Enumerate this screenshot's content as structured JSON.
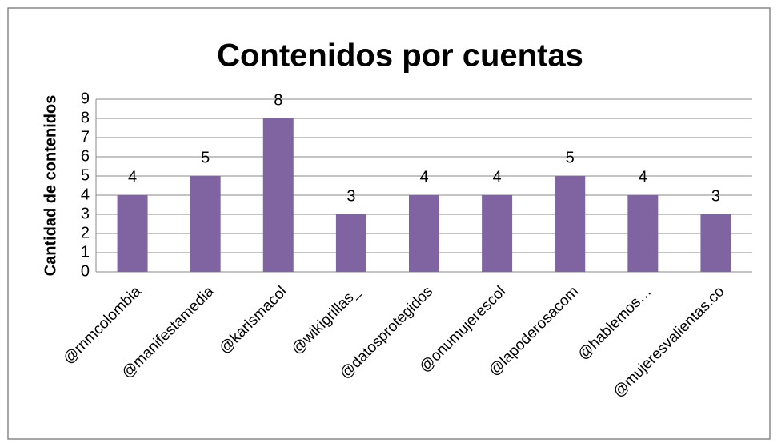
{
  "chart_data": {
    "type": "bar",
    "title": "Contenidos por cuentas",
    "y_label": "Cantidad de contenidos",
    "categories": [
      "@rnmcolombia",
      "@manifestamedia",
      "@karismacol",
      "@wikigrillas_",
      "@datosprotegidos",
      "@onumujerescol",
      "@lapoderosacom",
      "@hablemos…",
      "@mujeresvalientas.co"
    ],
    "values": [
      4,
      5,
      8,
      3,
      4,
      4,
      5,
      4,
      3
    ],
    "color": "#8064a2",
    "ylim": [
      0,
      9
    ],
    "yticks": [
      0,
      1,
      2,
      3,
      4,
      5,
      6,
      7,
      8,
      9
    ],
    "grid": true
  }
}
